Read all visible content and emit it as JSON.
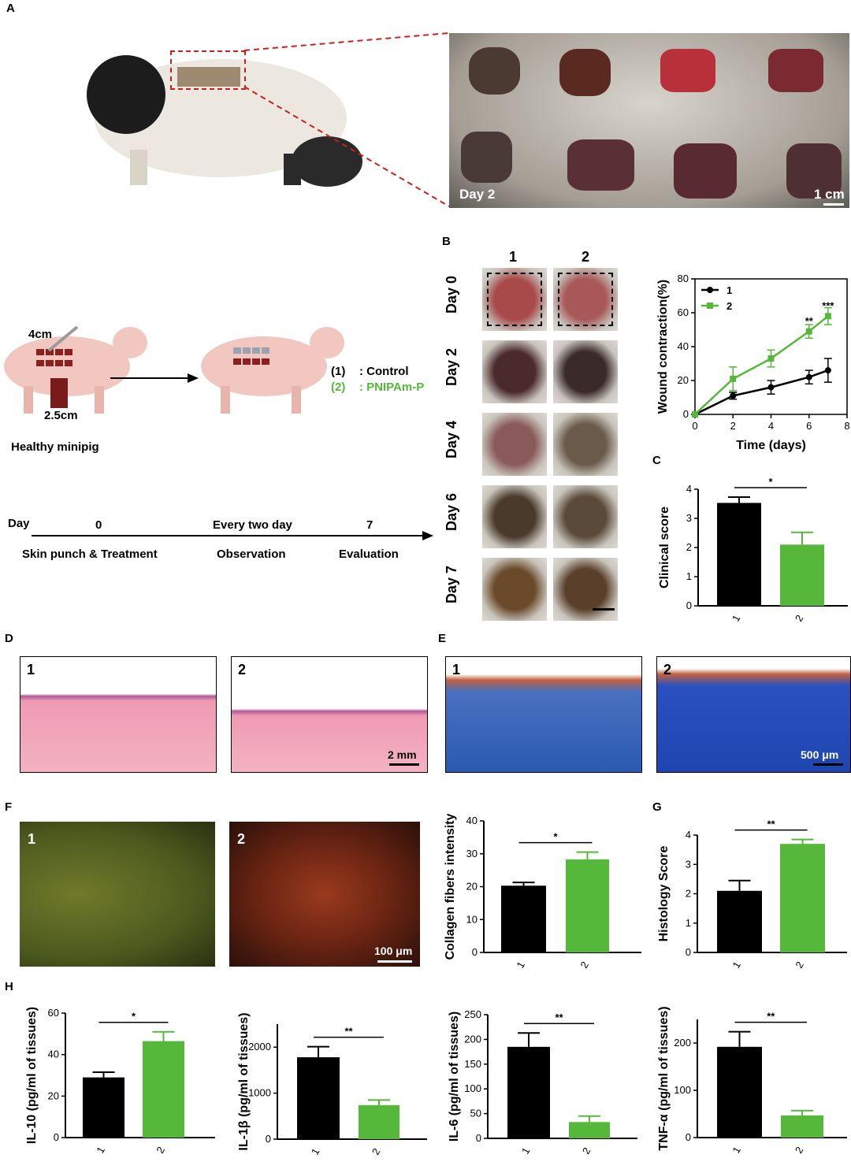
{
  "panels": {
    "A": "A",
    "B": "B",
    "C": "C",
    "D": "D",
    "E": "E",
    "F": "F",
    "G": "G",
    "H": "H"
  },
  "photoA": {
    "day": "Day 2",
    "scale": "1 cm"
  },
  "schematic": {
    "dim1": "4cm",
    "dim2": "2.5cm",
    "subject": "Healthy minipig",
    "legend1_num": "(1)",
    "legend1_text": ": Control",
    "legend2_num": "(2)",
    "legend2_text": ": PNIPAm-P",
    "legend2_color": "#56b83a"
  },
  "timeline": {
    "day_label": "Day",
    "tick0": "0",
    "tick_mid": "Every two day",
    "tick7": "7",
    "step1": "Skin punch & Treatment",
    "step2": "Observation",
    "step3": "Evaluation"
  },
  "gridB": {
    "col1": "1",
    "col2": "2",
    "rows": [
      "Day 0",
      "Day 2",
      "Day 4",
      "Day 6",
      "Day 7"
    ]
  },
  "histology": {
    "D1": "1",
    "D2": "2",
    "D_scale": "2 mm",
    "E1": "1",
    "E2": "2",
    "E_scale": "500 μm",
    "F1": "1",
    "F2": "2",
    "F_scale": "100 μm"
  },
  "colors": {
    "group1": "#000000",
    "group2": "#56b83a"
  },
  "chart_data": [
    {
      "id": "B_line",
      "type": "line",
      "xlabel": "Time (days)",
      "ylabel": "Wound contraction(%)",
      "xlim": [
        0,
        8
      ],
      "ylim": [
        0,
        80
      ],
      "xticks": [
        0,
        2,
        4,
        6,
        8
      ],
      "yticks": [
        0,
        20,
        40,
        60,
        80
      ],
      "legend_position": "top-left",
      "series": [
        {
          "name": "1",
          "x": [
            0,
            2,
            4,
            6,
            7
          ],
          "y": [
            0,
            11,
            16,
            22,
            26
          ],
          "err": [
            0,
            2,
            4,
            4,
            7
          ]
        },
        {
          "name": "2",
          "x": [
            0,
            2,
            4,
            6,
            7
          ],
          "y": [
            0,
            21,
            33,
            49,
            58
          ],
          "err": [
            0,
            7,
            5,
            4,
            5
          ]
        }
      ],
      "annotations": [
        {
          "x": 6,
          "y": 53,
          "text": "**"
        },
        {
          "x": 7,
          "y": 62,
          "text": "***"
        }
      ]
    },
    {
      "id": "C",
      "type": "bar",
      "ylabel": "Clinical score",
      "categories": [
        "1",
        "2"
      ],
      "values": [
        3.53,
        2.1
      ],
      "err": [
        0.2,
        0.42
      ],
      "ylim": [
        0,
        4
      ],
      "yticks": [
        0,
        1,
        2,
        3,
        4
      ],
      "sig": "*"
    },
    {
      "id": "F_bar",
      "type": "bar",
      "ylabel": "Collagen fibers intensity",
      "categories": [
        "1",
        "2"
      ],
      "values": [
        20.3,
        28.3
      ],
      "err": [
        1,
        2.2
      ],
      "ylim": [
        0,
        40
      ],
      "yticks": [
        0,
        10,
        20,
        30,
        40
      ],
      "sig": "*"
    },
    {
      "id": "G",
      "type": "bar",
      "ylabel": "Histology Score",
      "categories": [
        "1",
        "2"
      ],
      "values": [
        2.1,
        3.7
      ],
      "err": [
        0.35,
        0.15
      ],
      "ylim": [
        0,
        4
      ],
      "yticks": [
        0,
        1,
        2,
        3,
        4
      ],
      "sig": "**"
    },
    {
      "id": "H1",
      "type": "bar",
      "ylabel": "IL-10 (pg/ml of tissues)",
      "categories": [
        "1",
        "2"
      ],
      "values": [
        29,
        46.5
      ],
      "err": [
        2.5,
        4.5
      ],
      "ylim": [
        0,
        60
      ],
      "yticks": [
        0,
        20,
        40,
        60
      ],
      "sig": "*"
    },
    {
      "id": "H2",
      "type": "bar",
      "ylabel": "IL-1β (pg/ml of tissues)",
      "categories": [
        "1",
        "2"
      ],
      "values": [
        1780,
        740
      ],
      "err": [
        230,
        110
      ],
      "ylim": [
        0,
        2500
      ],
      "yticks": [
        0,
        1000,
        2000
      ],
      "sig": "**"
    },
    {
      "id": "H3",
      "type": "bar",
      "ylabel": "IL-6 (pg/ml of tissues)",
      "categories": [
        "1",
        "2"
      ],
      "values": [
        185,
        33
      ],
      "err": [
        28,
        12
      ],
      "ylim": [
        0,
        250
      ],
      "yticks": [
        0,
        50,
        100,
        150,
        200,
        250
      ],
      "sig": "**"
    },
    {
      "id": "H4",
      "type": "bar",
      "ylabel": "TNF-α (pg/ml of tissues)",
      "categories": [
        "1",
        "2"
      ],
      "values": [
        192,
        47
      ],
      "err": [
        32,
        10
      ],
      "ylim": [
        0,
        250
      ],
      "yticks": [
        0,
        100,
        200
      ],
      "sig": "**"
    }
  ]
}
